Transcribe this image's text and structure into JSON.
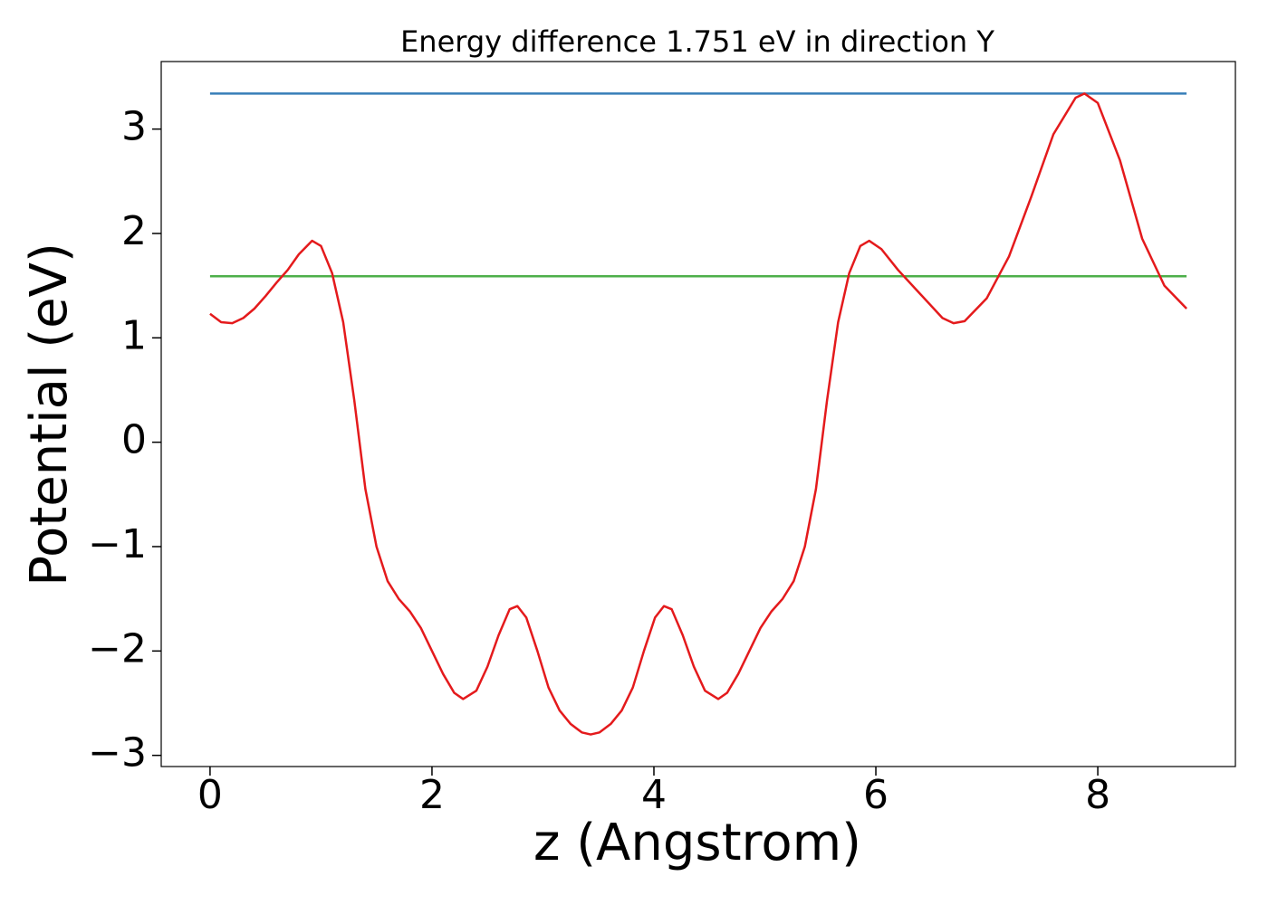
{
  "chart_data": {
    "type": "line",
    "title": "Energy difference 1.751 eV in direction Y",
    "xlabel": "z (Angstrom)",
    "ylabel": "Potential (eV)",
    "xlim": [
      -0.44,
      9.24
    ],
    "ylim": [
      -3.107,
      3.647
    ],
    "xticks": [
      0,
      2,
      4,
      6,
      8
    ],
    "yticks": [
      {
        "value": -3,
        "label": "−3"
      },
      {
        "value": -2,
        "label": "−2"
      },
      {
        "value": -1,
        "label": "−1"
      },
      0,
      1,
      2,
      3
    ],
    "series": [
      {
        "color": "#e41a1c",
        "x": [
          0,
          0.1,
          0.2,
          0.3,
          0.4,
          0.5,
          0.6,
          0.7,
          0.8,
          0.92,
          1.0,
          1.1,
          1.2,
          1.3,
          1.4,
          1.5,
          1.6,
          1.7,
          1.8,
          1.9,
          2.0,
          2.1,
          2.2,
          2.28,
          2.4,
          2.5,
          2.6,
          2.7,
          2.77,
          2.85,
          2.95,
          3.05,
          3.15,
          3.25,
          3.35,
          3.43,
          3.51,
          3.61,
          3.71,
          3.81,
          3.91,
          4.01,
          4.09,
          4.16,
          4.26,
          4.36,
          4.46,
          4.58,
          4.66,
          4.76,
          4.86,
          4.96,
          5.06,
          5.16,
          5.26,
          5.36,
          5.46,
          5.56,
          5.66,
          5.76,
          5.86,
          5.94,
          6.05,
          6.2,
          6.4,
          6.6,
          6.7,
          6.8,
          7.0,
          7.2,
          7.4,
          7.6,
          7.8,
          7.88,
          8.0,
          8.2,
          8.4,
          8.6,
          8.8
        ],
        "values": [
          1.23,
          1.15,
          1.14,
          1.19,
          1.28,
          1.4,
          1.53,
          1.65,
          1.8,
          1.93,
          1.88,
          1.62,
          1.15,
          0.4,
          -0.45,
          -1.0,
          -1.33,
          -1.5,
          -1.62,
          -1.78,
          -2.0,
          -2.22,
          -2.4,
          -2.46,
          -2.38,
          -2.15,
          -1.85,
          -1.6,
          -1.57,
          -1.68,
          -2.0,
          -2.35,
          -2.57,
          -2.7,
          -2.78,
          -2.8,
          -2.78,
          -2.7,
          -2.57,
          -2.35,
          -2.0,
          -1.68,
          -1.57,
          -1.6,
          -1.85,
          -2.15,
          -2.38,
          -2.46,
          -2.4,
          -2.22,
          -2.0,
          -1.78,
          -1.62,
          -1.5,
          -1.33,
          -1.0,
          -0.45,
          0.4,
          1.15,
          1.62,
          1.88,
          1.93,
          1.85,
          1.65,
          1.42,
          1.19,
          1.14,
          1.16,
          1.38,
          1.78,
          2.35,
          2.95,
          3.3,
          3.34,
          3.25,
          2.7,
          1.95,
          1.5,
          1.28
        ]
      },
      {
        "color": "#377eb8",
        "x": [
          0,
          8.8
        ],
        "values": [
          3.34,
          3.34
        ]
      },
      {
        "color": "#4daf4a",
        "x": [
          0,
          8.8
        ],
        "values": [
          1.59,
          1.59
        ]
      }
    ]
  }
}
